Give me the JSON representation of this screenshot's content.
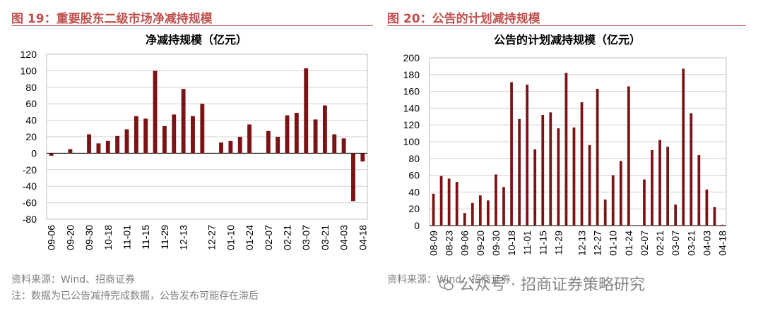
{
  "figure_left": {
    "title": "图 19：重要股东二级市场净减持规模"
  },
  "figure_right": {
    "title": "图 20：公告的计划减持规模"
  },
  "source_left": "资料来源：Wind、招商证券",
  "note_left": "注：数据为已公告减持完成数据，公告发布可能存在滞后",
  "source_right": "资料来源：Wind、招商证券",
  "watermark": "公众号 · 招商证券策略研究",
  "colors": {
    "bar": "#7b1316",
    "title": "#c0504d",
    "grid": "#d0d0d0",
    "text": "#000000"
  },
  "chart_data": [
    {
      "type": "bar",
      "title": "净减持规模（亿元）",
      "ylim": [
        -80,
        120
      ],
      "yticks": [
        120,
        100,
        80,
        60,
        40,
        20,
        0,
        -20,
        -40,
        -60,
        -80
      ],
      "xtick_labels": [
        "09-06",
        "09-20",
        "09-30",
        "10-18",
        "11-01",
        "11-15",
        "11-29",
        "12-13",
        "12-27",
        "01-10",
        "01-24",
        "02-07",
        "02-21",
        "03-07",
        "03-21",
        "04-03",
        "04-18"
      ],
      "values": [
        -3,
        0,
        5,
        0,
        23,
        12,
        15,
        21,
        29,
        45,
        42,
        100,
        33,
        47,
        78,
        45,
        60,
        0,
        13,
        15,
        20,
        35,
        0,
        27,
        20,
        46,
        49,
        103,
        41,
        58,
        23,
        18,
        -58,
        -10
      ],
      "grid": true
    },
    {
      "type": "bar",
      "title": "公告的计划减持规模（亿元）",
      "ylim": [
        0,
        200
      ],
      "yticks": [
        200,
        180,
        160,
        140,
        120,
        100,
        80,
        60,
        40,
        20,
        0
      ],
      "xtick_labels": [
        "08-09",
        "08-23",
        "09-06",
        "09-20",
        "09-30",
        "10-18",
        "11-01",
        "11-15",
        "11-29",
        "12-13",
        "12-27",
        "01-10",
        "01-24",
        "02-07",
        "02-21",
        "03-07",
        "03-21",
        "04-03",
        "04-18"
      ],
      "values": [
        38,
        59,
        56,
        52,
        15,
        27,
        36,
        30,
        61,
        46,
        171,
        127,
        168,
        91,
        132,
        135,
        116,
        182,
        117,
        147,
        96,
        163,
        31,
        60,
        77,
        166,
        0,
        55,
        90,
        102,
        94,
        25,
        187,
        134,
        84,
        43,
        22,
        1
      ],
      "grid": true
    }
  ]
}
